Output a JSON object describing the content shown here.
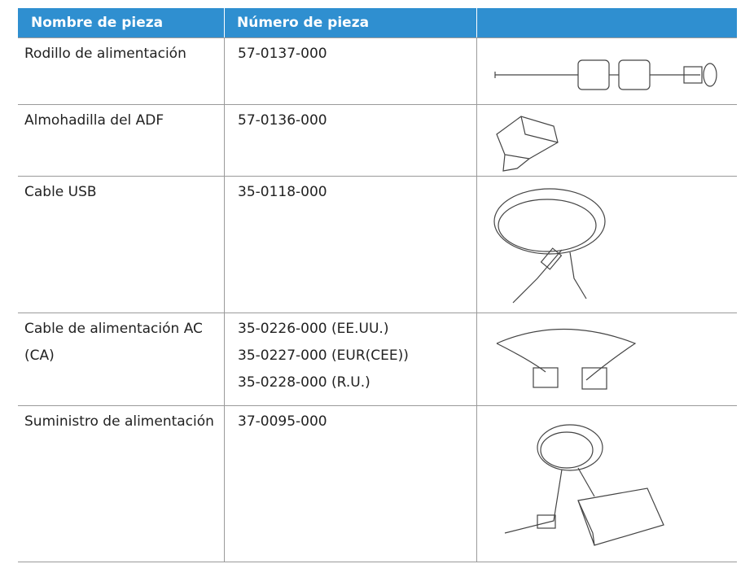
{
  "table": {
    "header": [
      "Nombre de pieza",
      "Número de pieza"
    ],
    "rows": [
      [
        "Rodillo de alimentación",
        [
          "57-0137-000"
        ]
      ],
      [
        "Almohadilla del ADF",
        [
          "57-0136-000"
        ]
      ],
      [
        "Cable USB",
        [
          "35-0118-000"
        ]
      ],
      [
        "Cable de alimentación AC (CA)",
        [
          "35-0226-000 (EE.UU.)",
          "35-0227-000 (EUR(CEE))",
          "35-0228-000 (R.U.)"
        ]
      ],
      [
        "Suministro de alimentación",
        [
          "37-0095-000"
        ]
      ]
    ]
  }
}
